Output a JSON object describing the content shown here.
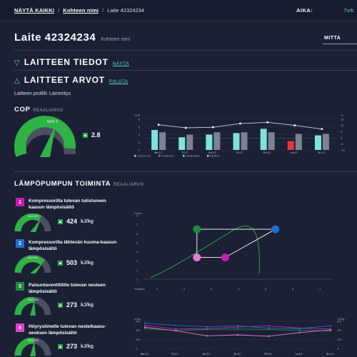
{
  "topbar": {
    "crumb_all": "NÄYTÄ KAIKKI",
    "crumb_target": "Kohteen nimi",
    "crumb_sep": "/",
    "crumb_device": "Laite 42324234",
    "aika_label": "AIKA:",
    "aika_value": "7vrk"
  },
  "header": {
    "title": "Laite 42324234",
    "subtitle": "Kohteen nimi",
    "tab_mitta": "MITTA"
  },
  "sections": {
    "laitteen_tiedot": {
      "title": "LAITTEEN TIEDOT",
      "link": "NÄYTÄ"
    },
    "laitteet_arvot": {
      "title": "LAITTEET ARVOT",
      "link": "PIILOTA"
    }
  },
  "profile_text": "Laitteen profiili: Lämmitys",
  "cop": {
    "title": "COP",
    "tag": "REAALIARVO",
    "gauge_max_label": "MAX 3",
    "value": "2.8",
    "gauge_fraction": 0.93
  },
  "cop_chart": {
    "axis_left_title": "COP",
    "axis_right_title": "°C",
    "left_ticks": [
      "8",
      "6",
      "4",
      "2",
      "0"
    ],
    "right_ticks": [
      "15",
      "10",
      "5",
      "0",
      "-5",
      "-10"
    ],
    "categories": [
      "Ma 1.7.",
      "Ti 2.7.",
      "Ke 3.7.",
      "To 4.7.",
      "Pe 5.1.",
      "La 6.7.",
      "Su 1.7."
    ],
    "legend": [
      "Tulevat arvot",
      "Vertailuarvo",
      "Ulkolämpötila",
      "Edellinen"
    ],
    "colors": {
      "current": "#7fe3dc",
      "compare": "#7d8292",
      "low": "#e53935",
      "line": "#d9c4f0"
    }
  },
  "lampopumppu": {
    "title": "LÄMPÖPUMPUN TOIMINTA",
    "tag": "REAALIARVO",
    "cards": [
      {
        "num": "1",
        "color": "#c81bb0",
        "title": "Kompressorilta tulevan tulistuneen kaasun lämpösisältö",
        "gauge_label": "MAX 600",
        "value": "424",
        "unit": "kJ/kg"
      },
      {
        "num": "2",
        "color": "#1f6fd1",
        "title": "Kompressorilta lähtevän kuuma-kaasun lämpösisältö",
        "gauge_label": "MAX 600",
        "value": "503",
        "unit": "kJ/kg"
      },
      {
        "num": "3",
        "color": "#1f8a3a",
        "title": "Paisuntaventtiilille tulevan nesteen lämpösisältö",
        "gauge_label": "MAX 600",
        "value": "273",
        "unit": "kJ/kg"
      },
      {
        "num": "4",
        "color": "#e040c8",
        "title": "Höyrystimelle tulevan neste/kaasu-seoksen lämpösisältö",
        "gauge_label": "MAX 600",
        "value": "273",
        "unit": "kJ/kg"
      }
    ]
  },
  "ph_chart": {
    "y_title": "Paine",
    "y_ticks": [
      "8",
      "7",
      "6",
      "5",
      "4",
      "3",
      "2",
      "1"
    ],
    "x_title": "Entalpia",
    "x_ticks": [
      "1",
      "2",
      "3",
      "4",
      "5",
      "6",
      "7"
    ]
  },
  "enthalpy_chart": {
    "left_title": "kJ/kg",
    "right_title": "kJ/kg",
    "ticks": [
      "600",
      "400",
      "200",
      "0"
    ],
    "categories": [
      "Ma 1.7.",
      "Ti 2.7.",
      "Ke 3.7.",
      "To 4.7.",
      "Pe 5.1.",
      "La 6.7.",
      "Su 1.7."
    ]
  },
  "chart_data": [
    {
      "type": "bar",
      "title": "",
      "categories": [
        "Ma 1.7.",
        "Ti 2.7.",
        "Ke 3.7.",
        "To 4.7.",
        "Pe 5.1.",
        "La 6.7.",
        "Su 1.7."
      ],
      "series": [
        {
          "name": "Tulevat arvot",
          "values": [
            5.2,
            3.3,
            4.0,
            4.4,
            5.5,
            2.3,
            3.8
          ]
        },
        {
          "name": "Vertailuarvo",
          "values": [
            4.6,
            4.0,
            4.6,
            4.6,
            4.6,
            4.2,
            4.2
          ]
        },
        {
          "name": "Ulkolämpötila",
          "values": [
            10.5,
            8.0,
            8.5,
            11.5,
            12.5,
            10.0,
            7.0
          ]
        }
      ],
      "ylim": [
        0,
        8
      ],
      "y2lim": [
        -10,
        15
      ],
      "legend_position": "bottom"
    },
    {
      "type": "line",
      "title": "",
      "ylabel": "Paine",
      "xlabel": "Entalpia",
      "ylim": [
        1,
        8
      ],
      "xlim": [
        1,
        7
      ],
      "series": [
        {
          "name": "1",
          "x": [
            3.6
          ],
          "y": [
            3.4
          ]
        },
        {
          "name": "2",
          "x": [
            5.2
          ],
          "y": [
            6.5
          ]
        },
        {
          "name": "3",
          "x": [
            2.7
          ],
          "y": [
            6.5
          ]
        },
        {
          "name": "4",
          "x": [
            2.7
          ],
          "y": [
            3.4
          ]
        }
      ]
    },
    {
      "type": "line",
      "title": "",
      "categories": [
        "Ma 1.7.",
        "Ti 2.7.",
        "Ke 3.7.",
        "To 4.7.",
        "Pe 5.1.",
        "La 6.7.",
        "Su 1.7."
      ],
      "ylim": [
        0,
        600
      ],
      "series": [
        {
          "name": "1",
          "values": [
            510,
            430,
            440,
            470,
            500,
            450,
            430
          ]
        },
        {
          "name": "2",
          "values": [
            560,
            510,
            480,
            500,
            450,
            440,
            500
          ]
        },
        {
          "name": "3",
          "values": [
            440,
            400,
            420,
            430,
            420,
            400,
            390
          ]
        },
        {
          "name": "4",
          "values": [
            470,
            390,
            280,
            300,
            270,
            350,
            410
          ]
        }
      ]
    }
  ]
}
